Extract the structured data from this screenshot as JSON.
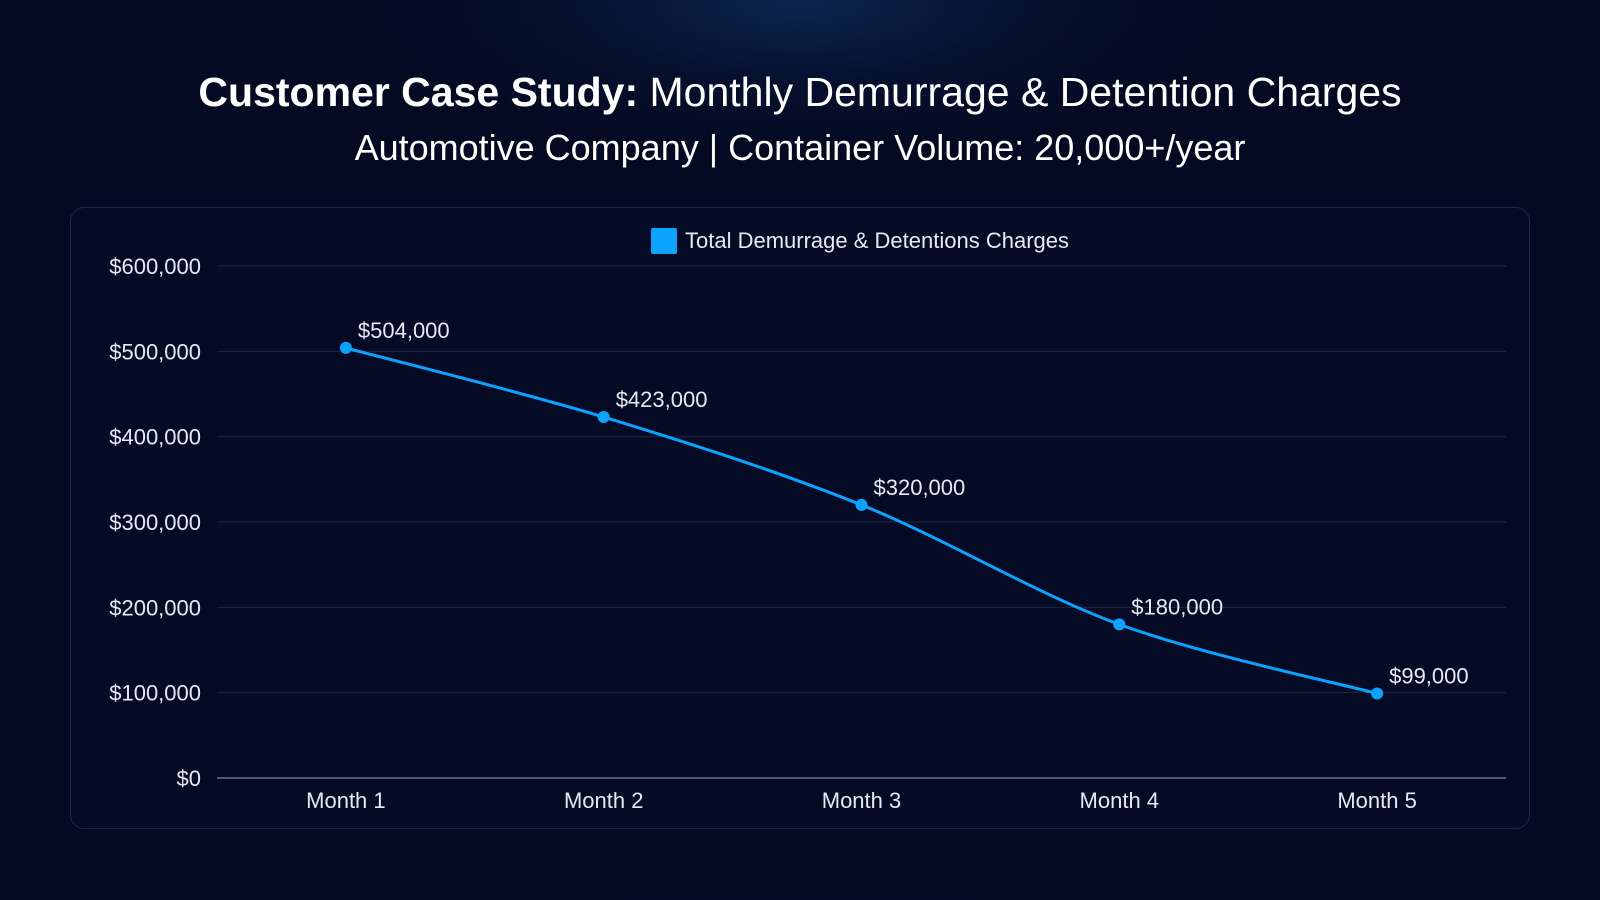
{
  "chart_data": {
    "type": "line",
    "title_bold": "Customer Case Study:",
    "title_rest": " Monthly Demurrage & Detention Charges",
    "subtitle": "Automotive Company | Container Volume: 20,000+/year",
    "categories": [
      "Month 1",
      "Month 2",
      "Month 3",
      "Month 4",
      "Month 5"
    ],
    "series": [
      {
        "name": "Total Demurrage & Detentions Charges",
        "values": [
          504000,
          423000,
          320000,
          180000,
          99000
        ],
        "labels": [
          "$504,000",
          "$423,000",
          "$320,000",
          "$180,000",
          "$99,000"
        ],
        "color": "#0aa3ff"
      }
    ],
    "ylim": [
      0,
      600000
    ],
    "yticks": [
      {
        "value": 600000,
        "label": "$600,000"
      },
      {
        "value": 500000,
        "label": "$500,000"
      },
      {
        "value": 400000,
        "label": "$400,000"
      },
      {
        "value": 300000,
        "label": "$300,000"
      },
      {
        "value": 200000,
        "label": "$200,000"
      },
      {
        "value": 100000,
        "label": "$100,000"
      },
      {
        "value": 0,
        "label": "$0"
      }
    ],
    "xlabel": "",
    "ylabel": "",
    "grid": true,
    "legend_position": "top-center"
  },
  "colors": {
    "background": "#040a22",
    "gridline": "#1c2747",
    "axis": "#6b7390",
    "line": "#0aa3ff"
  }
}
